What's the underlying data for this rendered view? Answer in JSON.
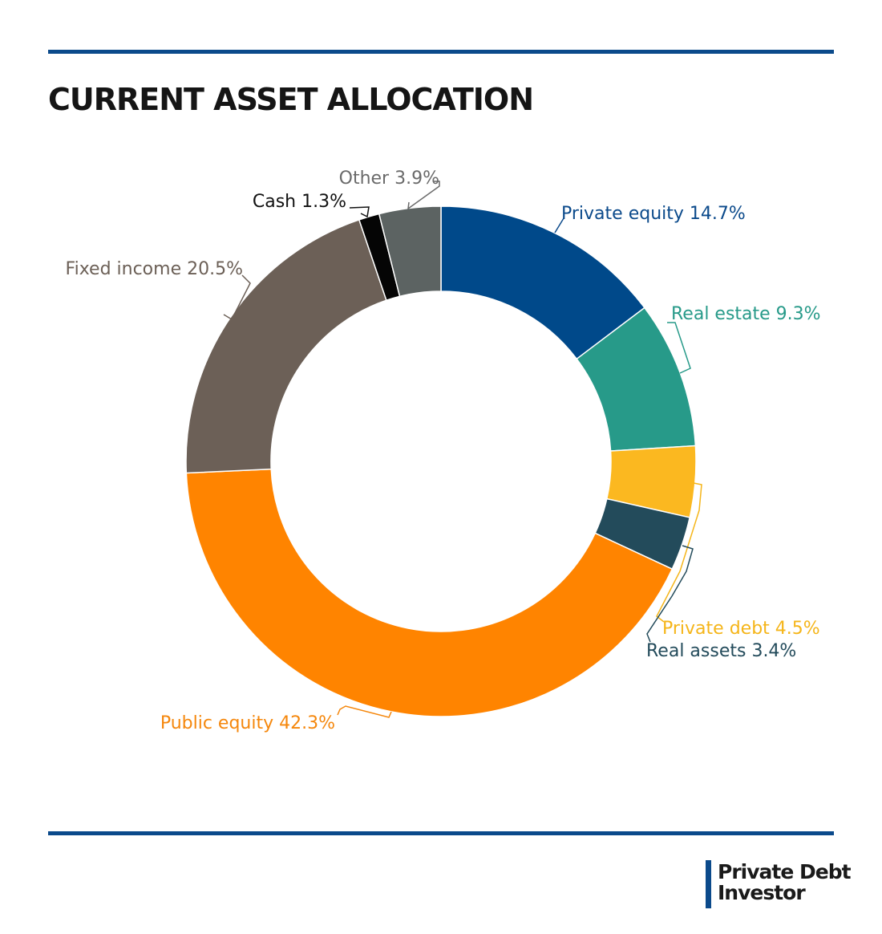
{
  "header": {
    "title": "CURRENT ASSET ALLOCATION"
  },
  "brand": {
    "line1": "Private Debt",
    "line2": "Investor"
  },
  "chart_data": {
    "type": "pie",
    "donut": true,
    "title": "CURRENT ASSET ALLOCATION",
    "slices": [
      {
        "name": "Private equity",
        "value": 14.7,
        "label": "Private equity 14.7%",
        "color": "#00498a",
        "label_color": "#0b4a8b"
      },
      {
        "name": "Real estate",
        "value": 9.3,
        "label": "Real estate 9.3%",
        "color": "#279a89",
        "label_color": "#279a89"
      },
      {
        "name": "Private debt",
        "value": 4.5,
        "label": "Private debt 4.5%",
        "color": "#fbb820",
        "label_color": "#f5b519"
      },
      {
        "name": "Real assets",
        "value": 3.4,
        "label": "Real assets 3.4%",
        "color": "#234b5b",
        "label_color": "#234b5b"
      },
      {
        "name": "Public equity",
        "value": 42.3,
        "label": "Public equity 42.3%",
        "color": "#ff8400",
        "label_color": "#f5870c"
      },
      {
        "name": "Fixed income",
        "value": 20.5,
        "label": "Fixed income 20.5%",
        "color": "#6c6057",
        "label_color": "#6c6057"
      },
      {
        "name": "Cash",
        "value": 1.3,
        "label": "Cash 1.3%",
        "color": "#050505",
        "label_color": "#111111"
      },
      {
        "name": "Other",
        "value": 3.9,
        "label": "Other 3.9%",
        "color": "#5c6362",
        "label_color": "#6a6a6a"
      }
    ]
  }
}
